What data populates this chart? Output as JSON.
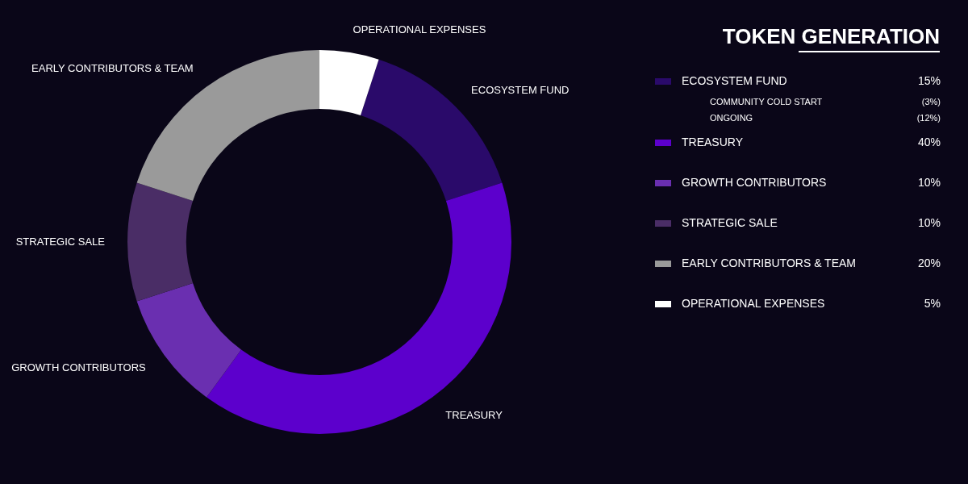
{
  "chart_data": {
    "type": "donut",
    "title": "TOKEN GENERATION",
    "categories": [
      "ECOSYSTEM FUND",
      "TREASURY",
      "GROWTH CONTRIBUTORS",
      "STRATEGIC SALE",
      "EARLY CONTRIBUTORS & TEAM",
      "OPERATIONAL EXPENSES"
    ],
    "values": [
      15,
      40,
      10,
      10,
      20,
      5
    ],
    "colors": [
      "#2a0a6a",
      "#5c00cc",
      "#6a2fb0",
      "#4a2d66",
      "#9a9a9a",
      "#ffffff"
    ],
    "value_labels": [
      "15%",
      "40%",
      "10%",
      "10%",
      "20%",
      "5%"
    ],
    "annotations": [
      "COMMUNITY COLD START",
      "(3%)",
      "ONGOING",
      "(12%)"
    ],
    "legend": "right"
  }
}
